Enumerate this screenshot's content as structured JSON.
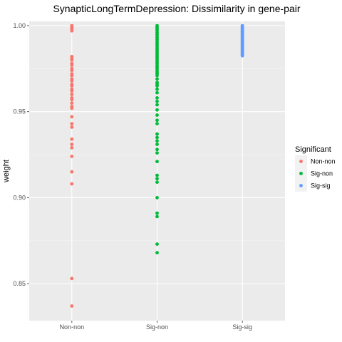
{
  "chart_data": {
    "type": "scatter",
    "title": "SynapticLongTermDepression: Dissimilarity in gene-pair",
    "xlabel": "",
    "ylabel": "weight",
    "categories": [
      "Non-non",
      "Sig-non",
      "Sig-sig"
    ],
    "ylim": [
      0.831,
      1.0
    ],
    "yticks": [
      0.85,
      0.9,
      0.95,
      1.0
    ],
    "yticklabels": [
      "0.85",
      "0.90",
      "0.95",
      "1.00"
    ],
    "grid": true,
    "background": "#ebebeb",
    "legend": {
      "title": "Significant",
      "placement": "right",
      "entries": [
        "Non-non",
        "Sig-non",
        "Sig-sig"
      ]
    },
    "series": [
      {
        "name": "Non-non",
        "color": "#f8766d",
        "category": "Non-non",
        "values": [
          1.0,
          0.999,
          0.999,
          0.998,
          0.998,
          0.997,
          0.982,
          0.981,
          0.98,
          0.978,
          0.977,
          0.975,
          0.974,
          0.972,
          0.971,
          0.969,
          0.968,
          0.966,
          0.965,
          0.963,
          0.962,
          0.96,
          0.958,
          0.957,
          0.955,
          0.953,
          0.952,
          0.947,
          0.943,
          0.941,
          0.934,
          0.931,
          0.929,
          0.924,
          0.915,
          0.908,
          0.853,
          0.837
        ]
      },
      {
        "name": "Sig-non",
        "color": "#00ba38",
        "category": "Sig-non",
        "values": [
          1.0,
          0.999,
          0.998,
          0.997,
          0.996,
          0.995,
          0.994,
          0.993,
          0.992,
          0.991,
          0.99,
          0.989,
          0.988,
          0.987,
          0.986,
          0.985,
          0.984,
          0.983,
          0.982,
          0.981,
          0.98,
          0.979,
          0.978,
          0.977,
          0.976,
          0.975,
          0.974,
          0.973,
          0.972,
          0.971,
          0.969,
          0.967,
          0.966,
          0.965,
          0.963,
          0.961,
          0.958,
          0.956,
          0.954,
          0.951,
          0.948,
          0.945,
          0.943,
          0.937,
          0.935,
          0.933,
          0.931,
          0.928,
          0.926,
          0.921,
          0.913,
          0.911,
          0.909,
          0.9,
          0.891,
          0.889,
          0.873,
          0.868
        ]
      },
      {
        "name": "Sig-sig",
        "color": "#619cff",
        "category": "Sig-sig",
        "values": [
          1.0,
          0.9995,
          0.999,
          0.9985,
          0.998,
          0.9975,
          0.997,
          0.9965,
          0.996,
          0.9955,
          0.995,
          0.9945,
          0.994,
          0.9935,
          0.993,
          0.9925,
          0.992,
          0.9915,
          0.991,
          0.9905,
          0.99,
          0.9895,
          0.989,
          0.9885,
          0.988,
          0.9875,
          0.987,
          0.9865,
          0.986,
          0.9855,
          0.985,
          0.9845,
          0.984,
          0.9835,
          0.983,
          0.9825
        ]
      }
    ]
  }
}
